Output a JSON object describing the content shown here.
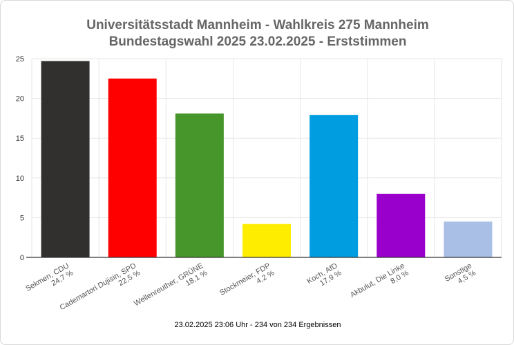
{
  "chart_data": {
    "type": "bar",
    "title": [
      "Universitätsstadt Mannheim - Wahlkreis 275 Mannheim",
      "Bundestagswahl 2025 23.02.2025  - Erststimmen"
    ],
    "categories": [
      {
        "name": "Sekmen, CDU",
        "value_label": "24,7 %"
      },
      {
        "name": "Cademartori Dujisin, SPD",
        "value_label": "22,5 %"
      },
      {
        "name": "Wellenreuther, GRÜNE",
        "value_label": "18,1 %"
      },
      {
        "name": "Stockmeier, FDP",
        "value_label": "4,2 %"
      },
      {
        "name": "Koch, AfD",
        "value_label": "17,9 %"
      },
      {
        "name": "Akbulut, Die Linke",
        "value_label": "8,0 %"
      },
      {
        "name": "Sonstige",
        "value_label": "4,5 %"
      }
    ],
    "values": [
      24.7,
      22.5,
      18.1,
      4.2,
      17.9,
      8.0,
      4.5
    ],
    "colors": [
      "#32302e",
      "#ff0000",
      "#46962b",
      "#ffed00",
      "#009ee0",
      "#9900cc",
      "#aabfe6"
    ],
    "ylim": [
      0,
      25
    ],
    "yticks": [
      "0",
      "5",
      "10",
      "15",
      "20",
      "25"
    ],
    "xlabel": "",
    "ylabel": "",
    "grid": true
  },
  "footer": "23.02.2025 23:06 Uhr - 234 von 234 Ergebnissen"
}
